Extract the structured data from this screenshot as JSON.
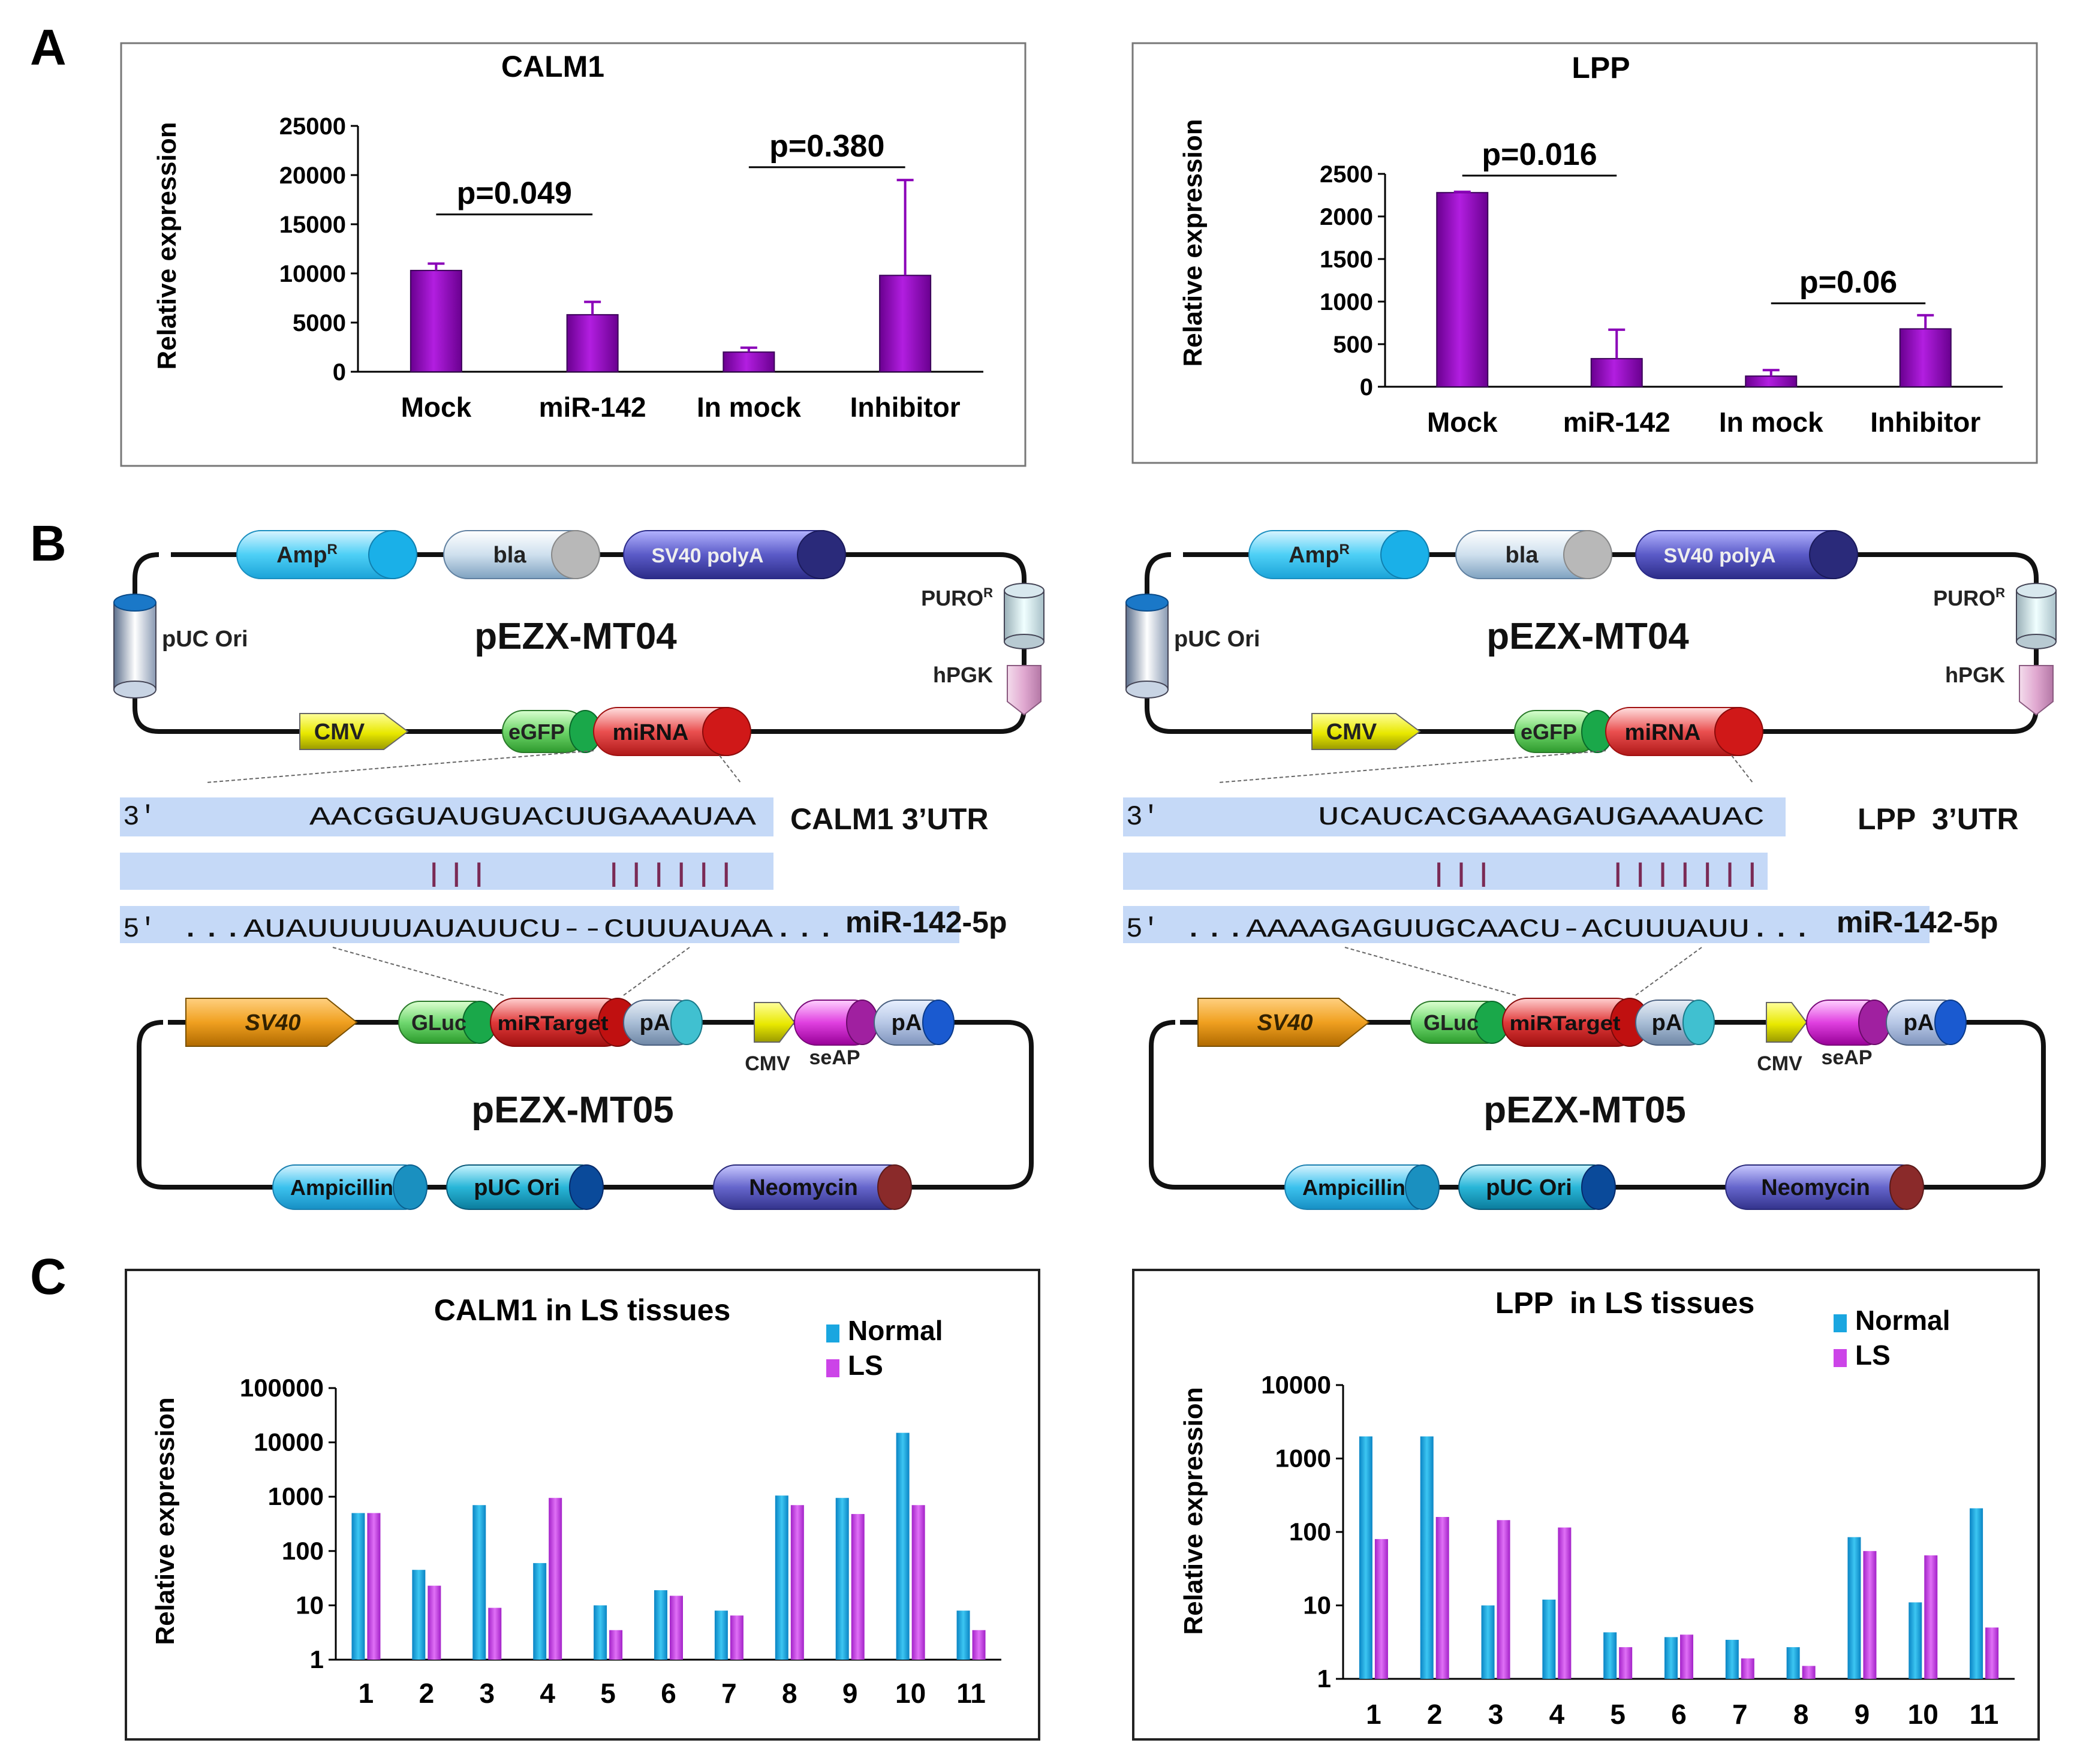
{
  "panel_labels": {
    "a": "A",
    "b": "B",
    "c": "C"
  },
  "colors": {
    "purple": "#9900cc",
    "cyan": "#1aa6e0",
    "magenta": "#cc44e8",
    "seq_bg": "#c5d9f7",
    "pair": "#7a2a55",
    "frame": "#777777"
  },
  "chart_data": [
    {
      "type": "bar",
      "scale": "linear",
      "title": "CALM1",
      "ylabel": "Relative expression",
      "categories": [
        "Mock",
        "miR-142",
        "In mock",
        "Inhibitor"
      ],
      "values": [
        10300,
        5800,
        2000,
        9800
      ],
      "errors": [
        700,
        1300,
        450,
        9700
      ],
      "ylim": [
        0,
        25000
      ],
      "yticks": [
        "0",
        "5000",
        "10000",
        "15000",
        "20000",
        "25000"
      ],
      "yticks_values": [
        0,
        5000,
        10000,
        15000,
        20000,
        25000
      ],
      "comparisons": [
        {
          "from": 0,
          "to": 1,
          "label": "p=0.049",
          "level": 16000
        },
        {
          "from": 2,
          "to": 3,
          "label": "p=0.380",
          "level": 20800
        }
      ]
    },
    {
      "type": "bar",
      "scale": "linear",
      "title": "LPP",
      "ylabel": "Relative expression",
      "categories": [
        "Mock",
        "miR-142",
        "In mock",
        "Inhibitor"
      ],
      "values": [
        2280,
        330,
        125,
        680
      ],
      "errors": [
        10,
        340,
        70,
        160
      ],
      "ylim": [
        0,
        2500
      ],
      "yticks": [
        "0",
        "500",
        "1000",
        "1500",
        "2000",
        "2500"
      ],
      "yticks_values": [
        0,
        500,
        1000,
        1500,
        2000,
        2500
      ],
      "comparisons": [
        {
          "from": 0,
          "to": 1,
          "label": "p=0.016",
          "level": 2480
        },
        {
          "from": 2,
          "to": 3,
          "label": "p=0.06",
          "level": 980
        }
      ]
    },
    {
      "type": "bar",
      "scale": "log",
      "title": "CALM1 in LS tissues",
      "ylabel": "Relative expression",
      "categories": [
        "1",
        "2",
        "3",
        "4",
        "5",
        "6",
        "7",
        "8",
        "9",
        "10",
        "11"
      ],
      "series": [
        {
          "name": "Normal",
          "values": [
            500,
            45,
            700,
            60,
            10,
            19,
            8,
            1050,
            950,
            15000,
            8
          ]
        },
        {
          "name": "LS",
          "values": [
            500,
            23,
            9,
            950,
            3.5,
            15,
            6.5,
            700,
            480,
            700,
            3.5
          ]
        }
      ],
      "ylim": [
        1,
        100000
      ],
      "yticks": [
        "1",
        "10",
        "100",
        "1000",
        "10000",
        "100000"
      ],
      "yticks_values": [
        1,
        10,
        100,
        1000,
        10000,
        100000
      ],
      "legend": "top-right"
    },
    {
      "type": "bar",
      "scale": "log",
      "title": "LPP  in LS tissues",
      "ylabel": "Relative expression",
      "categories": [
        "1",
        "2",
        "3",
        "4",
        "5",
        "6",
        "7",
        "8",
        "9",
        "10",
        "11"
      ],
      "series": [
        {
          "name": "Normal",
          "values": [
            2000,
            2000,
            10,
            12,
            4.3,
            3.7,
            3.4,
            2.7,
            85,
            11,
            210
          ]
        },
        {
          "name": "LS",
          "values": [
            80,
            160,
            145,
            115,
            2.7,
            4,
            1.9,
            1.5,
            55,
            48,
            5
          ]
        }
      ],
      "ylim": [
        1,
        10000
      ],
      "yticks": [
        "1",
        "10",
        "100",
        "1000",
        "10000"
      ],
      "yticks_values": [
        1,
        10,
        100,
        1000,
        10000
      ],
      "legend": "top-right"
    }
  ],
  "vectors": [
    {
      "mt04": {
        "name": "pEZX-MT04",
        "amp": "Amp",
        "amp_sup": "R",
        "bla": "bla",
        "sv40polya": "SV40 polyA",
        "puc_ori": "pUC Ori",
        "puro": "PURO",
        "puro_sup": "R",
        "hpgk": "hPGK",
        "cmv": "CMV",
        "egfp": "eGFP",
        "mirna": "miRNA"
      },
      "alignment": {
        "utr_prefix": "3'",
        "utr_seq": "AACGGUAUGUACUUGAAAUAA",
        "utr_label": "CALM1 3’UTR",
        "pairs": "|||     ||||||",
        "mir_prefix": "5'",
        "mir_seq": "...AUAUUUUUAUAUUCU--CUUUAUAA...",
        "mir_label": "miR-142-5p"
      },
      "mt05": {
        "name": "pEZX-MT05",
        "sv40": "SV40",
        "gluc": "GLuc",
        "mirtarget": "miRTarget",
        "pa1": "pA",
        "cmv": "CMV",
        "seap": "seAP",
        "pa2": "pA",
        "ampicillin": "Ampicillin",
        "puc_ori": "pUC Ori",
        "neomycin": "Neomycin"
      }
    },
    {
      "mt04": {
        "name": "pEZX-MT04",
        "amp": "Amp",
        "amp_sup": "R",
        "bla": "bla",
        "sv40polya": "SV40 polyA",
        "puc_ori": "pUC Ori",
        "puro": "PURO",
        "puro_sup": "R",
        "hpgk": "hPGK",
        "cmv": "CMV",
        "egfp": "eGFP",
        "mirna": "miRNA"
      },
      "alignment": {
        "utr_prefix": "3'",
        "utr_seq": "UCAUCACGAAAGAUGAAAUAC",
        "utr_label": "LPP  3’UTR",
        "pairs": "|||     |||||||",
        "mir_prefix": "5'",
        "mir_seq": "...AAAAGAGUUGCAACU-ACUUUAUU...",
        "mir_label": "miR-142-5p"
      },
      "mt05": {
        "name": "pEZX-MT05",
        "sv40": "SV40",
        "gluc": "GLuc",
        "mirtarget": "miRTarget",
        "pa1": "pA",
        "cmv": "CMV",
        "seap": "seAP",
        "pa2": "pA",
        "ampicillin": "Ampicillin",
        "puc_ori": "pUC Ori",
        "neomycin": "Neomycin"
      }
    }
  ]
}
